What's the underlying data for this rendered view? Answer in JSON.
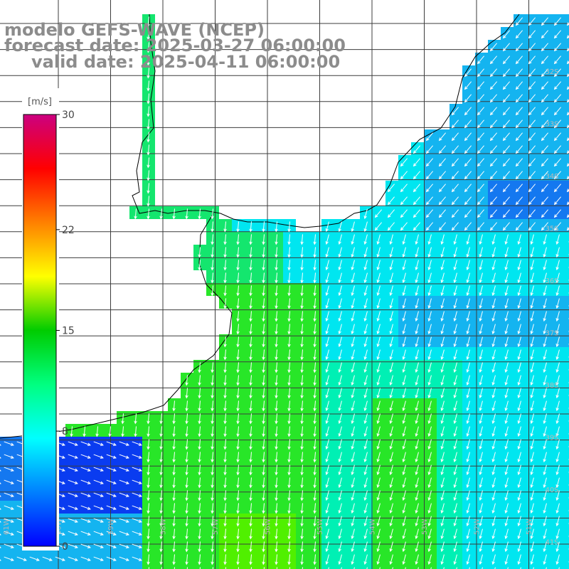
{
  "header": {
    "model": "modelo GEFS-WAVE (NCEP)",
    "forecast": "forecast date: 2025-03-27 06:00:00",
    "valid": "valid date: 2025-04-11 06:00:00"
  },
  "colorbar": {
    "unit": "[m/s]",
    "min": 0,
    "max": 30,
    "tick_labels": [
      "30",
      "22",
      "15",
      "8",
      "0"
    ],
    "tick_values": [
      30,
      22,
      15,
      8,
      0
    ],
    "colors": [
      "#0000ff",
      "#0080ff",
      "#00ffff",
      "#00ff80",
      "#00cc00",
      "#ffff00",
      "#ff8000",
      "#ff0000",
      "#cc0080"
    ]
  },
  "map": {
    "variable": "wind speed and direction",
    "lat_labels": [
      "32S",
      "33S",
      "34S",
      "35S",
      "36S",
      "37S",
      "38S",
      "39S",
      "40S",
      "41S"
    ],
    "lon_labels": [
      "61W",
      "60W",
      "59W",
      "58W",
      "57W",
      "56W",
      "55W",
      "54W",
      "53W",
      "52W",
      "51W"
    ],
    "speed_colors": {
      "very_low": "#0a3cf0",
      "low": "#1478f0",
      "medium_low": "#14b4f0",
      "medium": "#00e6f0",
      "medium_high": "#00f0b4",
      "high": "#14e66e",
      "higher": "#28e628",
      "highest": "#50f000"
    },
    "wind_direction": "from north-northeast",
    "arrow_color": "#ffffff",
    "coastline_color": "#000000",
    "grid_color": "#3c3c3c",
    "land_color": "#ffffff"
  }
}
